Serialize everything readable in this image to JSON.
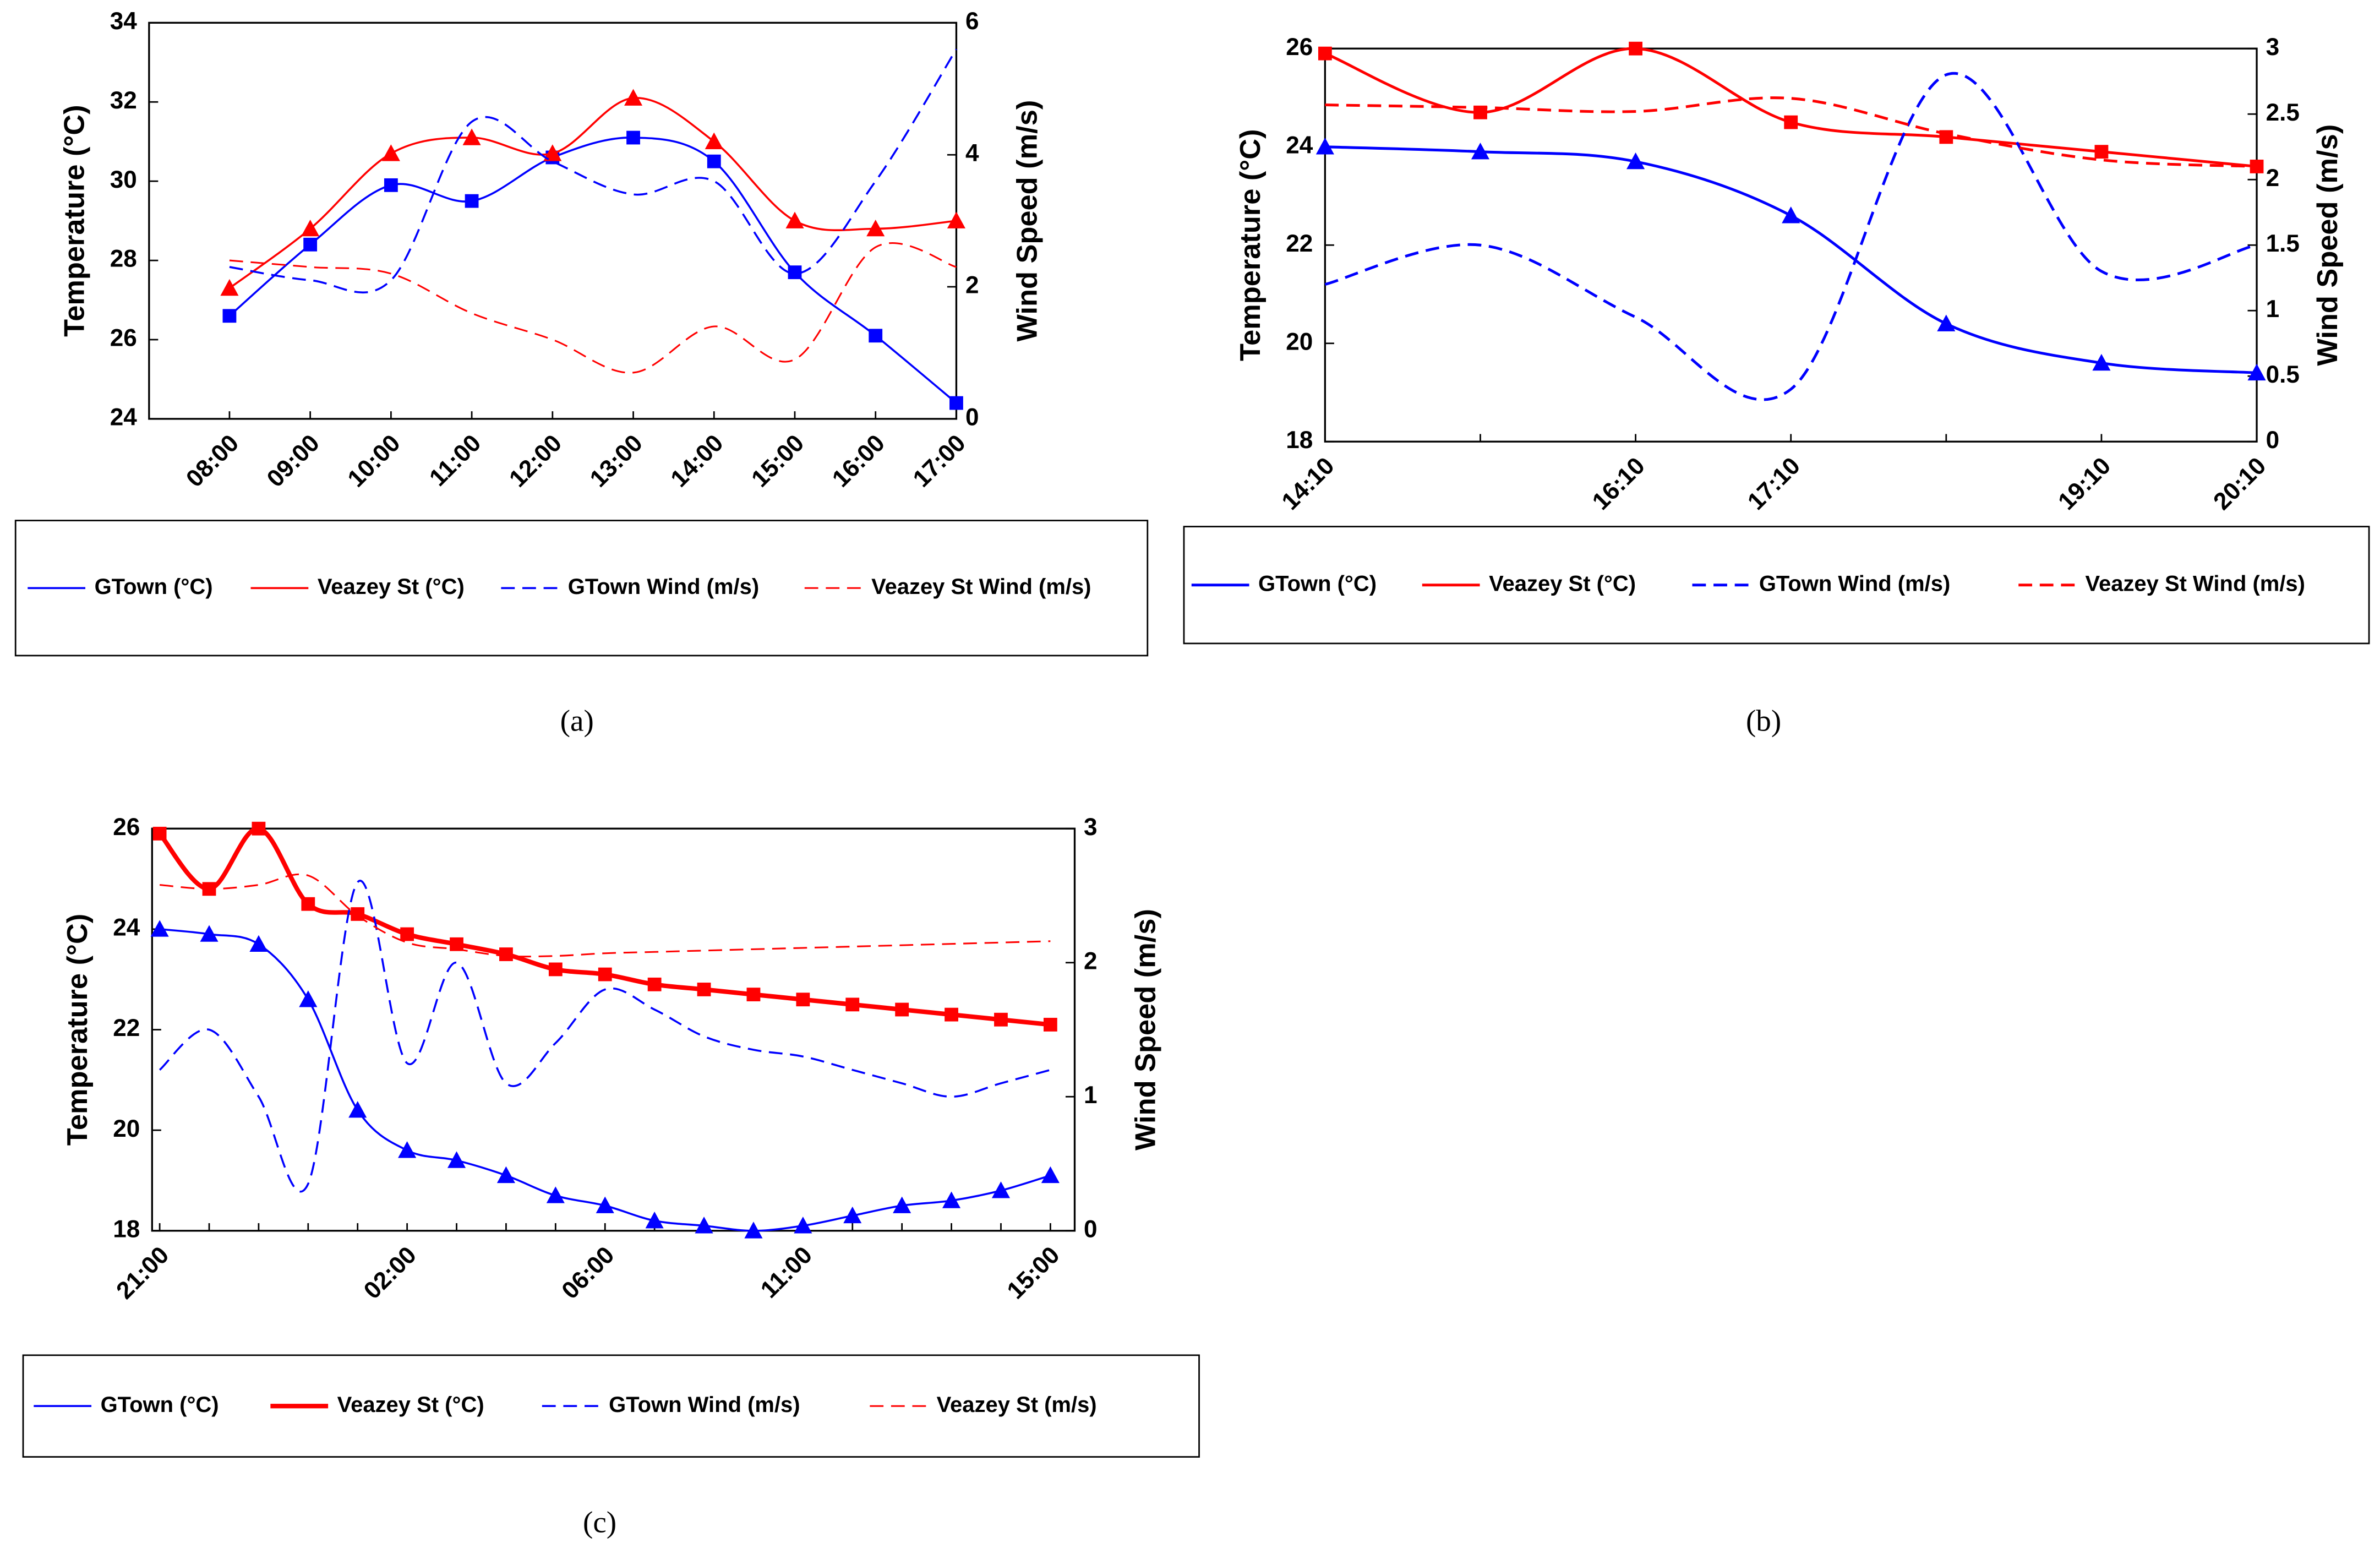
{
  "chart_data": [
    {
      "type": "line",
      "caption": "(a)",
      "ylabel": "Temperature (°C)",
      "y2label": "Wind Speed (m/s)",
      "categories": [
        "08:00",
        "09:00",
        "10:00",
        "11:00",
        "12:00",
        "13:00",
        "14:00",
        "15:00",
        "16:00",
        "17:00"
      ],
      "ylim": [
        24,
        34
      ],
      "yticks": [
        24,
        26,
        28,
        30,
        32,
        34
      ],
      "y2lim": [
        0,
        6
      ],
      "y2ticks": [
        0,
        2,
        4,
        6
      ],
      "series": [
        {
          "name": "GTown (°C)",
          "color": "#0000ff",
          "marker": "square",
          "dashed": false,
          "line_width": 1.3,
          "values": [
            26.6,
            28.4,
            29.9,
            29.5,
            30.6,
            31.1,
            30.5,
            27.7,
            26.1,
            24.4
          ]
        },
        {
          "name": "Veazey St (°C)",
          "color": "#ff0000",
          "marker": "triangle",
          "dashed": false,
          "line_width": 1.3,
          "values": [
            27.3,
            28.8,
            30.7,
            31.1,
            30.7,
            32.1,
            31.0,
            29.0,
            28.8,
            29.0
          ]
        },
        {
          "name": "GTown Wind (m/s)",
          "color": "#0000ff",
          "dashed": true,
          "line_width": 1.3,
          "axis": "y2",
          "values": [
            2.3,
            2.1,
            2.1,
            4.5,
            3.9,
            3.4,
            3.6,
            2.2,
            3.6,
            5.6
          ]
        },
        {
          "name": "Veazey St Wind (m/s)",
          "color": "#ff0000",
          "dashed": true,
          "line_width": 1.1,
          "axis": "y2",
          "values": [
            2.4,
            2.3,
            2.2,
            1.6,
            1.2,
            0.7,
            1.4,
            0.9,
            2.6,
            2.3
          ]
        }
      ]
    },
    {
      "type": "line",
      "caption": "(b)",
      "ylabel": "Temperature (°C)",
      "y2label": "Wind Speed (m/s)",
      "categories": [
        "14:10",
        null,
        "16:10",
        "17:10",
        null,
        "19:10",
        "20:10"
      ],
      "ylim": [
        18,
        26
      ],
      "yticks": [
        18,
        20,
        22,
        24,
        26
      ],
      "y2lim": [
        0,
        3
      ],
      "y2ticks": [
        0,
        0.5,
        1,
        1.5,
        2,
        2.5,
        3
      ],
      "series": [
        {
          "name": "GTown (°C)",
          "color": "#0000ff",
          "marker": "triangle",
          "dashed": false,
          "line_width": 1.8,
          "values": [
            24.0,
            23.9,
            23.7,
            22.6,
            20.4,
            19.6,
            19.4
          ]
        },
        {
          "name": "Veazey St (°C)",
          "color": "#ff0000",
          "marker": "square",
          "dashed": false,
          "line_width": 1.8,
          "values": [
            25.9,
            24.7,
            26.0,
            24.5,
            24.2,
            23.9,
            23.6
          ]
        },
        {
          "name": "GTown Wind (m/s)",
          "color": "#0000ff",
          "dashed": true,
          "line_width": 1.8,
          "axis": "y2",
          "values": [
            1.2,
            1.5,
            0.95,
            0.4,
            2.8,
            1.3,
            1.5
          ]
        },
        {
          "name": "Veazey St Wind (m/s)",
          "color": "#ff0000",
          "dashed": true,
          "line_width": 1.8,
          "axis": "y2",
          "values": [
            2.57,
            2.55,
            2.52,
            2.62,
            2.35,
            2.15,
            2.1
          ]
        }
      ]
    },
    {
      "type": "line",
      "caption": "(c)",
      "ylabel": "Temperature (°C)",
      "y2label": "Wind Speed (m/s)",
      "categories": [
        "21:00",
        null,
        null,
        null,
        null,
        "02:00",
        null,
        null,
        null,
        "06:00",
        null,
        null,
        null,
        "11:00",
        null,
        null,
        null,
        null,
        "15:00"
      ],
      "ylim": [
        18,
        26
      ],
      "yticks": [
        18,
        20,
        22,
        24,
        26
      ],
      "y2lim": [
        0,
        3
      ],
      "y2ticks": [
        0,
        1,
        2,
        3
      ],
      "series": [
        {
          "name": "GTown (°C)",
          "color": "#0000ff",
          "marker": "triangle",
          "dashed": false,
          "line_width": 1.3,
          "values": [
            24.0,
            23.9,
            23.7,
            22.6,
            20.4,
            19.6,
            19.4,
            19.1,
            18.7,
            18.5,
            18.2,
            18.1,
            18.0,
            18.1,
            18.3,
            18.5,
            18.6,
            18.8,
            19.1
          ]
        },
        {
          "name": "Veazey St (°C)",
          "color": "#ff0000",
          "marker": "square",
          "dashed": false,
          "line_width": 3,
          "values": [
            25.9,
            24.8,
            26.0,
            24.5,
            24.3,
            23.9,
            23.7,
            23.5,
            23.2,
            23.1,
            22.9,
            22.8,
            22.7,
            22.6,
            22.5,
            22.4,
            22.3,
            22.2,
            22.1
          ]
        },
        {
          "name": "GTown Wind (m/s)",
          "color": "#0000ff",
          "dashed": true,
          "line_width": 1.3,
          "axis": "y2",
          "values": [
            1.2,
            1.5,
            1.0,
            0.35,
            2.6,
            1.25,
            2.0,
            1.1,
            1.4,
            1.8,
            1.65,
            1.45,
            1.35,
            1.3,
            1.2,
            1.1,
            1.0,
            1.1,
            1.2
          ]
        },
        {
          "name": "Veazey St (m/s)",
          "color": "#ff0000",
          "dashed": true,
          "line_width": 1.1,
          "axis": "y2",
          "values": [
            2.58,
            2.55,
            2.58,
            2.65,
            2.35,
            2.15,
            2.1,
            2.05,
            2.05,
            2.07,
            2.08,
            2.09,
            2.1,
            2.11,
            2.12,
            2.13,
            2.14,
            2.15,
            2.16
          ]
        }
      ]
    }
  ]
}
